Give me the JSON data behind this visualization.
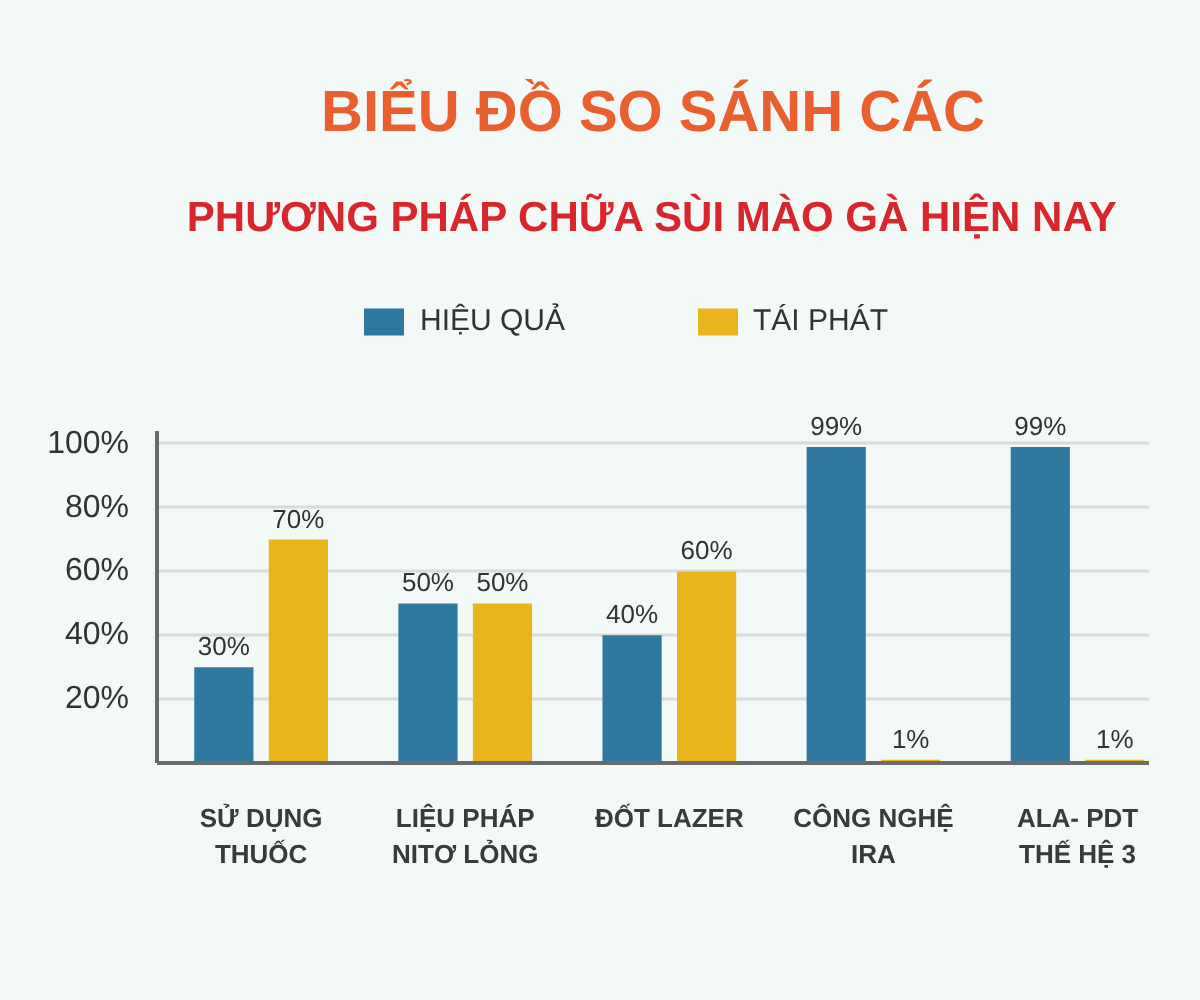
{
  "chart_data": {
    "type": "bar",
    "title": "BIỂU ĐỒ SO SÁNH CÁC",
    "subtitle": "PHƯƠNG PHÁP CHỮA SÙI MÀO GÀ HIỆN NAY",
    "categories": [
      "SỬ DỤNG\nTHUỐC",
      "LIỆU PHÁP\nNITƠ LỎNG",
      "ĐỐT LAZER",
      "CÔNG NGHỆ\nIRA",
      "ALA- PDT\nTHẾ HỆ 3"
    ],
    "series": [
      {
        "name": "HIỆU QUẢ",
        "color": "#2f79a1",
        "values": [
          30,
          50,
          40,
          99,
          99
        ],
        "value_labels": [
          "30%",
          "50%",
          "40%",
          "99%",
          "99%"
        ]
      },
      {
        "name": "TÁI PHÁT",
        "color": "#e9b51b",
        "values": [
          70,
          50,
          60,
          1,
          1
        ],
        "value_labels": [
          "70%",
          "50%",
          "60%",
          "1%",
          "1%"
        ]
      }
    ],
    "ylim": [
      0,
      104
    ],
    "yticks": [
      {
        "value": 20,
        "label": "20%"
      },
      {
        "value": 40,
        "label": "40%"
      },
      {
        "value": 60,
        "label": "60%"
      },
      {
        "value": 80,
        "label": "80%"
      },
      {
        "value": 100,
        "label": "100%"
      }
    ],
    "grid": "y",
    "legend": "top"
  }
}
